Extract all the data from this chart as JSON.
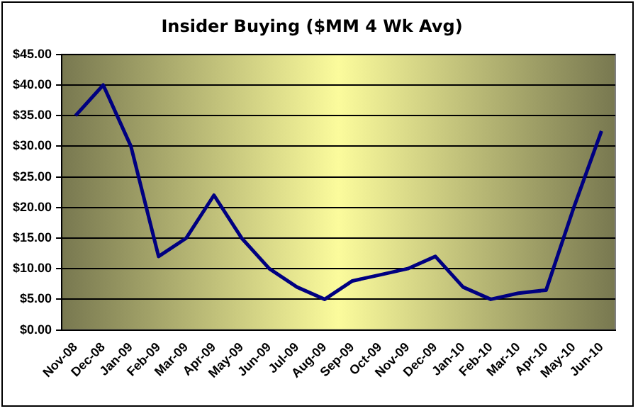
{
  "chart_data": {
    "type": "line",
    "title": "Insider Buying ($MM 4 Wk Avg)",
    "categories": [
      "Nov-08",
      "Dec-08",
      "Jan-09",
      "Feb-09",
      "Mar-09",
      "Apr-09",
      "May-09",
      "Jun-09",
      "Jul-09",
      "Aug-09",
      "Sep-09",
      "Oct-09",
      "Nov-09",
      "Dec-09",
      "Jan-10",
      "Feb-10",
      "Mar-10",
      "Apr-10",
      "May-10",
      "Jun-10"
    ],
    "series": [
      {
        "color": "#000080",
        "values": [
          35,
          40,
          30,
          12,
          15,
          22,
          15,
          10,
          7,
          5,
          8,
          9,
          10,
          12,
          7,
          5,
          6,
          6.5,
          20,
          32.5
        ]
      }
    ],
    "ylim": [
      0,
      45
    ],
    "yticks": [
      {
        "value": 0,
        "label": "$0.00"
      },
      {
        "value": 5,
        "label": "$5.00"
      },
      {
        "value": 10,
        "label": "$10.00"
      },
      {
        "value": 15,
        "label": "$15.00"
      },
      {
        "value": 20,
        "label": "$20.00"
      },
      {
        "value": 25,
        "label": "$25.00"
      },
      {
        "value": 30,
        "label": "$30.00"
      },
      {
        "value": 35,
        "label": "$35.00"
      },
      {
        "value": 40,
        "label": "$40.00"
      },
      {
        "value": 45,
        "label": "$45.00"
      }
    ],
    "grid": "y",
    "legend": false,
    "marker": "none",
    "line_style": "solid"
  }
}
